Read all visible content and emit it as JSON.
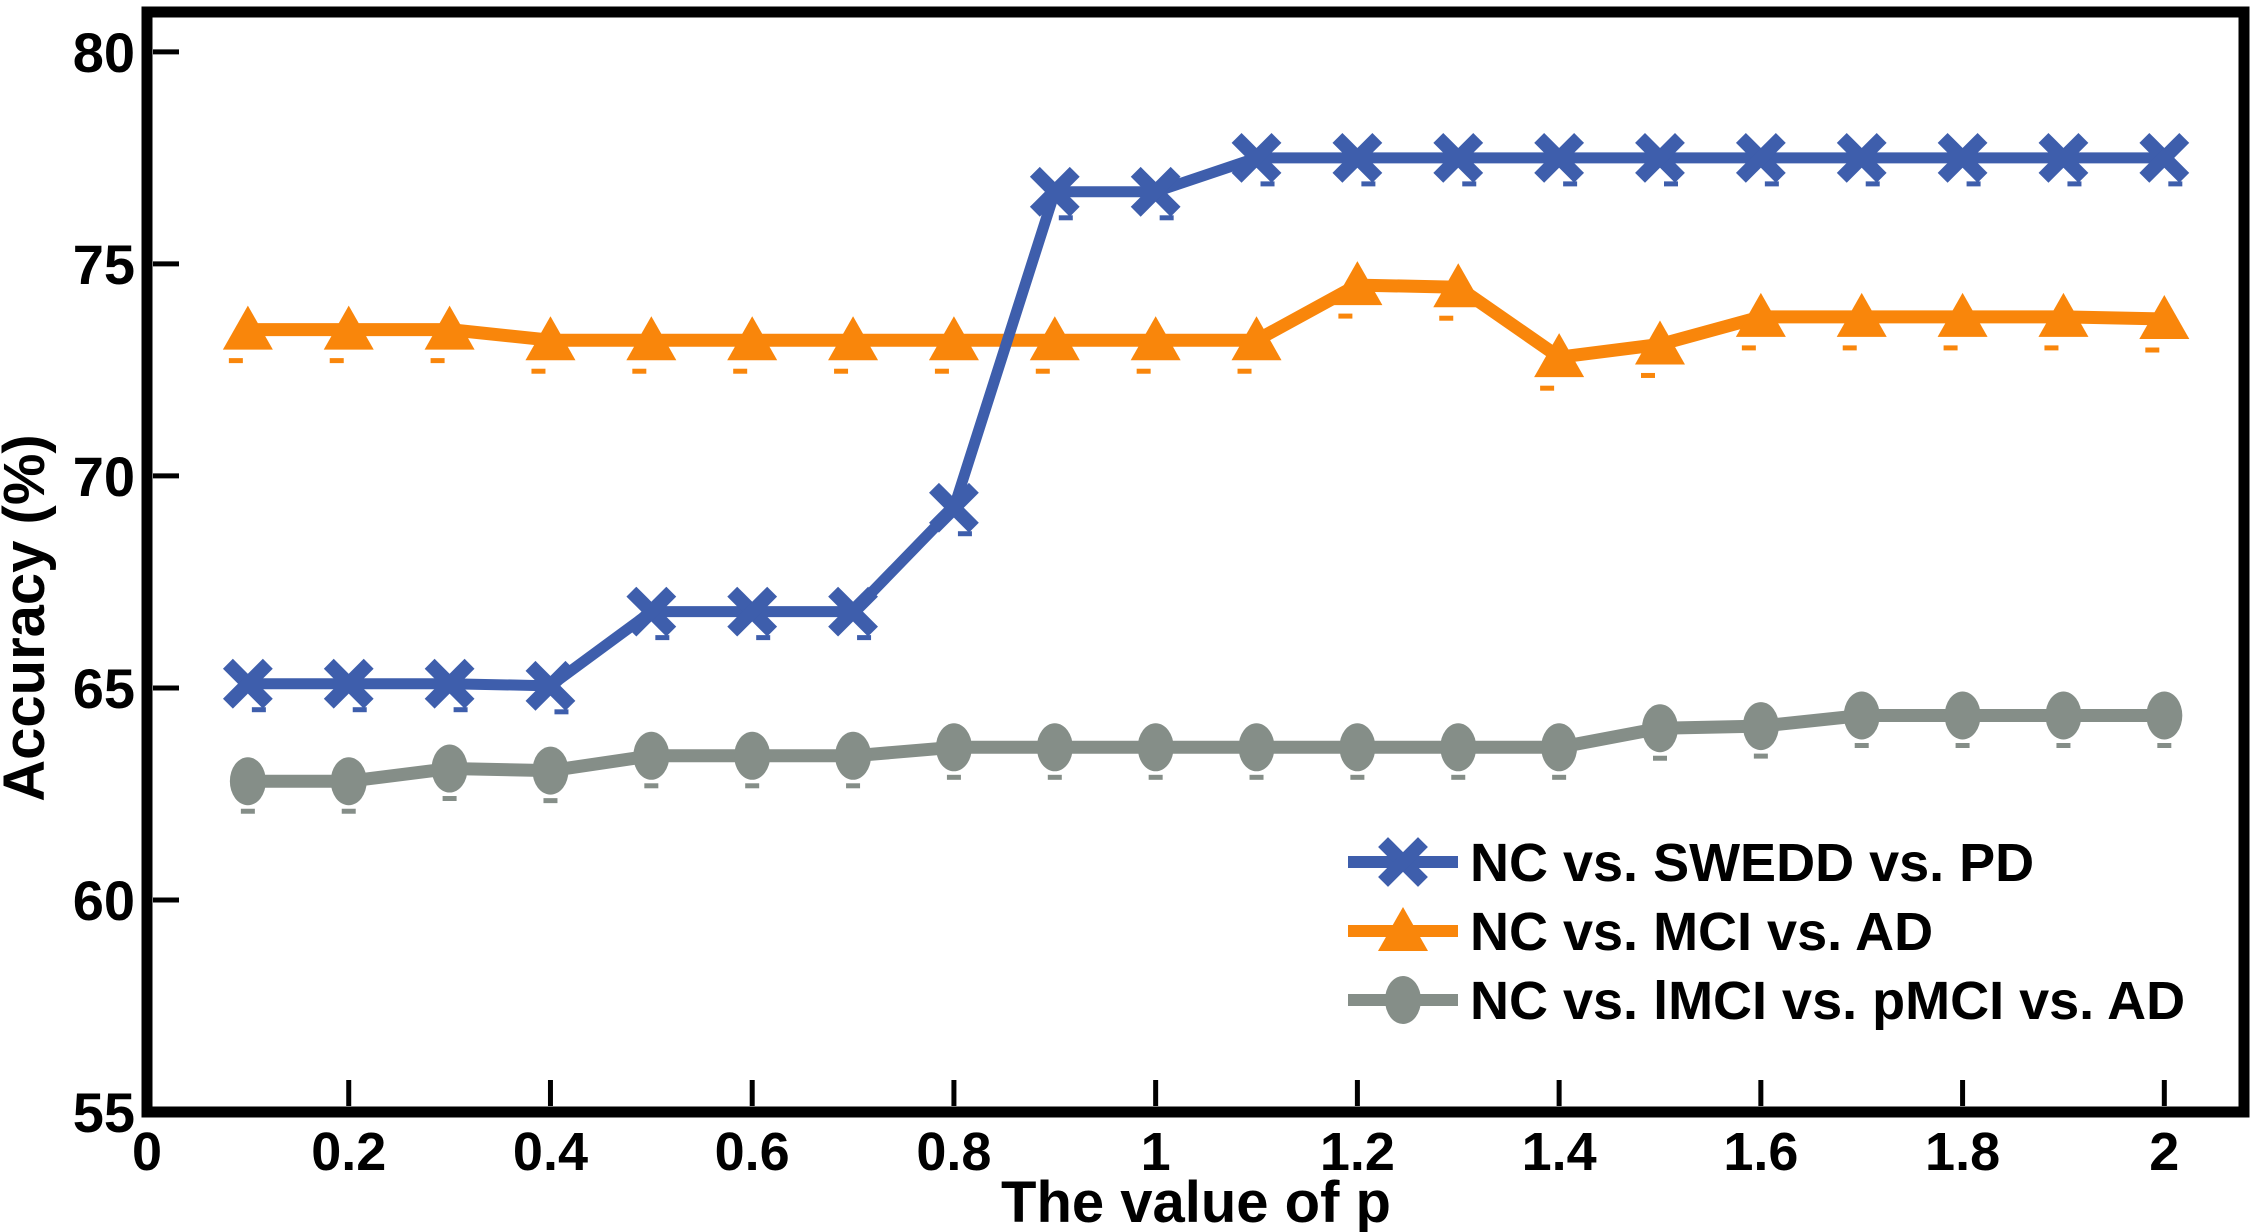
{
  "chart_data": {
    "type": "line",
    "title": "",
    "xlabel": "The value of p",
    "ylabel": "Accuracy (%)",
    "xlim": [
      0,
      2.079
    ],
    "ylim": [
      55,
      80.94
    ],
    "x_ticks": [
      0,
      0.2,
      0.4,
      0.6,
      0.8,
      1,
      1.2,
      1.4,
      1.6,
      1.8,
      2
    ],
    "x_tick_labels": [
      "0",
      "0.2",
      "0.4",
      "0.6",
      "0.8",
      "1",
      "1.2",
      "1.4",
      "1.6",
      "1.8",
      "2"
    ],
    "y_ticks": [
      55,
      60,
      65,
      70,
      75,
      80
    ],
    "grid": false,
    "legend_position": "inside-lower-right",
    "frame_color": "#000000",
    "x": [
      0.1,
      0.2,
      0.3,
      0.4,
      0.5,
      0.6,
      0.7,
      0.8,
      0.9,
      1.0,
      1.1,
      1.2,
      1.3,
      1.4,
      1.5,
      1.6,
      1.7,
      1.8,
      1.9,
      2.0
    ],
    "series": [
      {
        "name": "NC vs. SWEDD vs. PD",
        "color": "#3E5EAC",
        "marker": "x",
        "values": [
          65.1,
          65.1,
          65.1,
          65.05,
          66.8,
          66.8,
          66.8,
          69.25,
          76.7,
          76.7,
          77.5,
          77.5,
          77.5,
          77.5,
          77.5,
          77.5,
          77.5,
          77.5,
          77.5,
          77.5
        ]
      },
      {
        "name": "NC vs. MCI vs. AD",
        "color": "#F9860B",
        "marker": "triangle",
        "values": [
          73.45,
          73.45,
          73.45,
          73.2,
          73.2,
          73.2,
          73.2,
          73.2,
          73.2,
          73.2,
          73.2,
          74.5,
          74.45,
          72.8,
          73.1,
          73.75,
          73.75,
          73.75,
          73.75,
          73.7
        ]
      },
      {
        "name": "NC vs. lMCI vs. pMCI vs. AD",
        "color": "#858E88",
        "marker": "ellipse",
        "values": [
          62.8,
          62.8,
          63.1,
          63.05,
          63.4,
          63.4,
          63.4,
          63.6,
          63.6,
          63.6,
          63.6,
          63.6,
          63.6,
          63.6,
          64.05,
          64.1,
          64.35,
          64.35,
          64.35,
          64.35
        ]
      }
    ]
  }
}
